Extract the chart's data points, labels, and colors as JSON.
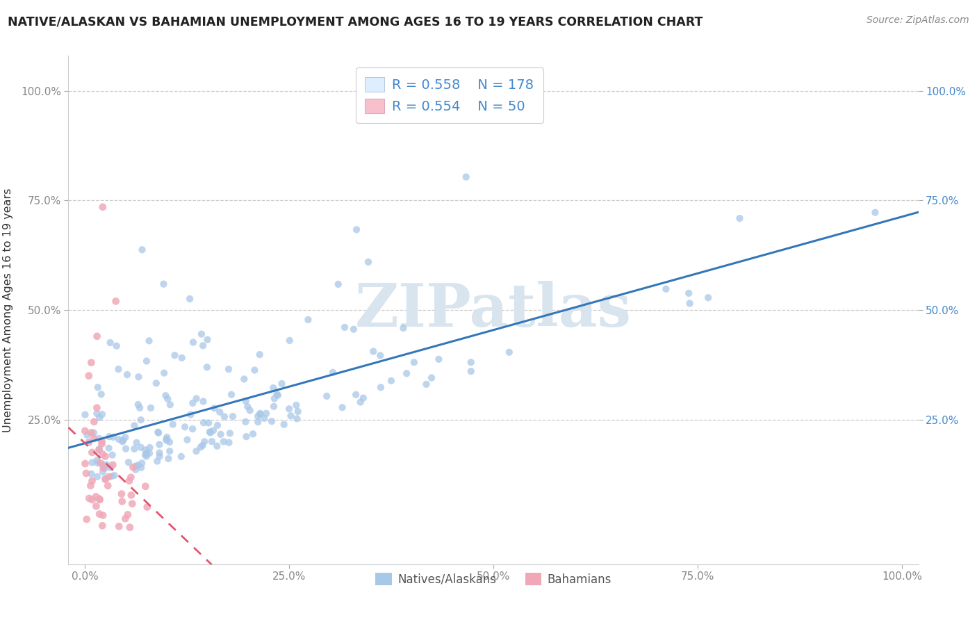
{
  "title": "NATIVE/ALASKAN VS BAHAMIAN UNEMPLOYMENT AMONG AGES 16 TO 19 YEARS CORRELATION CHART",
  "source_text": "Source: ZipAtlas.com",
  "ylabel": "Unemployment Among Ages 16 to 19 years",
  "xlim": [
    -0.02,
    1.02
  ],
  "ylim": [
    -0.08,
    1.08
  ],
  "xtick_labels": [
    "0.0%",
    "25.0%",
    "50.0%",
    "75.0%",
    "100.0%"
  ],
  "xtick_vals": [
    0.0,
    0.25,
    0.5,
    0.75,
    1.0
  ],
  "ytick_labels": [
    "25.0%",
    "50.0%",
    "75.0%",
    "100.0%"
  ],
  "ytick_vals": [
    0.25,
    0.5,
    0.75,
    1.0
  ],
  "native_R": 0.558,
  "native_N": 178,
  "bahamian_R": 0.554,
  "bahamian_N": 50,
  "dot_color_native": "#a8c8e8",
  "dot_color_bahamian": "#f0a8b8",
  "line_color_native": "#3377bb",
  "line_color_bahamian": "#e05570",
  "watermark": "ZIPatlas",
  "watermark_color": "#d8e4ee",
  "background_color": "#ffffff",
  "title_color": "#222222",
  "axis_label_color": "#333333",
  "grid_color": "#cccccc",
  "right_tick_color": "#4488cc",
  "tick_label_color": "#888888",
  "legend_box_color": "#ddeeff",
  "legend_pink_color": "#f8c0cc"
}
